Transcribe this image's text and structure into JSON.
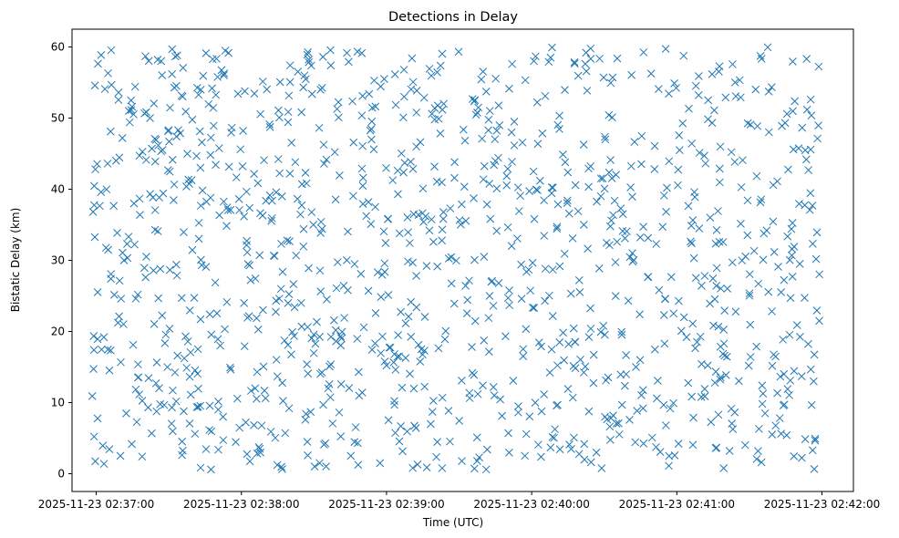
{
  "chart_data": {
    "type": "scatter",
    "title": "Detections in Delay",
    "xlabel": "Time (UTC)",
    "ylabel": "Bistatic Delay (km)",
    "marker": "x",
    "color": "#1f77b4",
    "grid": false,
    "legend": "none",
    "xlim": [
      "2025-11-23 02:36:50",
      "2025-11-23 02:42:13"
    ],
    "ylim": [
      -2.5,
      62.5
    ],
    "x_ticks": [
      "2025-11-23 02:37:00",
      "2025-11-23 02:38:00",
      "2025-11-23 02:39:00",
      "2025-11-23 02:40:00",
      "2025-11-23 02:41:00",
      "2025-11-23 02:42:00"
    ],
    "y_ticks": [
      0,
      10,
      20,
      30,
      40,
      50,
      60
    ],
    "point_count": 1200,
    "series": [
      {
        "x_start": "2025-11-23 02:36:58",
        "x_end": "2025-11-23 02:41:59",
        "y_min": 0.5,
        "y_max": 60.0
      }
    ]
  }
}
